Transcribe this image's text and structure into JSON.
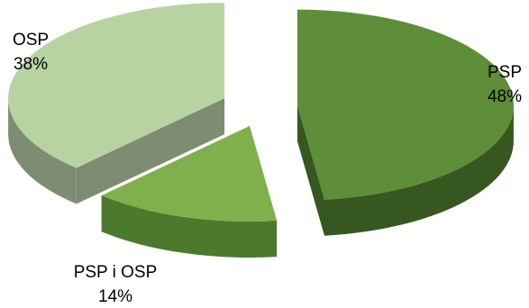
{
  "chart_data": {
    "type": "pie",
    "three_d": true,
    "exploded": true,
    "categories": [
      "PSP",
      "PSP i OSP",
      "OSP"
    ],
    "values": [
      48,
      14,
      38
    ],
    "value_labels": [
      "48%",
      "14%",
      "38%"
    ],
    "colors": [
      "#5e8e38",
      "#7fb04c",
      "#b8d3a2"
    ],
    "side_colors": [
      "#365820",
      "#4b7a2c",
      "#7e8c72"
    ],
    "title": "",
    "legend": "none",
    "data_labels": "outside-category-and-percent"
  }
}
